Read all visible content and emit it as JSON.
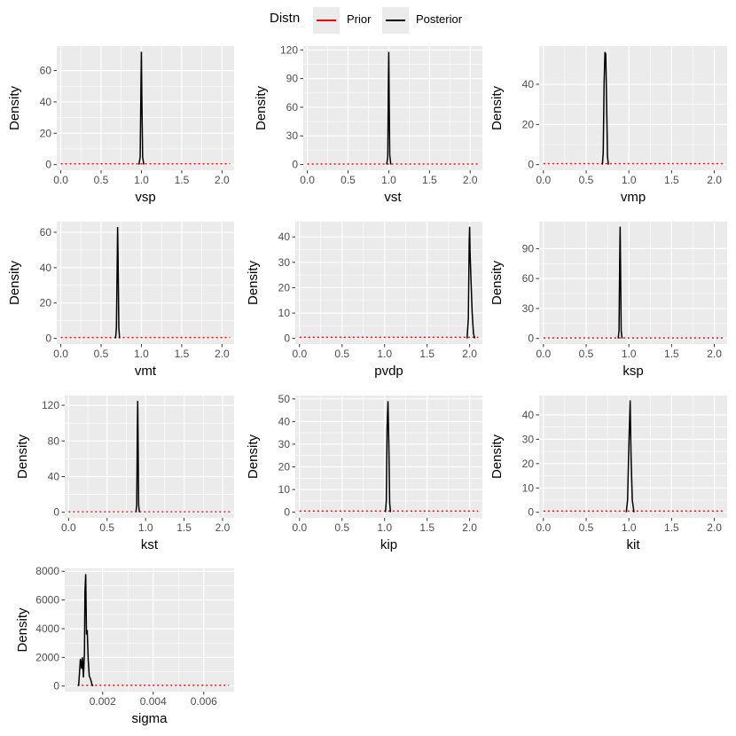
{
  "legend": {
    "title": "Distn",
    "items": [
      {
        "label": "Prior",
        "color": "#ff0000"
      },
      {
        "label": "Posterior",
        "color": "#000000"
      }
    ]
  },
  "colors": {
    "panel_bg": "#ebebeb",
    "grid": "#ffffff",
    "prior": "#ff0000",
    "posterior": "#000000"
  },
  "chart_data": [
    {
      "type": "line",
      "xlabel": "vsp",
      "ylabel": "Density",
      "xlim": [
        -0.05,
        2.15
      ],
      "ylim": [
        -3.6,
        75.6
      ],
      "xticks": [
        0.0,
        0.5,
        1.0,
        1.5,
        2.0
      ],
      "xtick_labels": [
        "0.0",
        "0.5",
        "1.0",
        "1.5",
        "2.0"
      ],
      "yticks": [
        0,
        20,
        40,
        60
      ],
      "ytick_labels": [
        "0",
        "20",
        "40",
        "60"
      ],
      "series": [
        {
          "name": "Prior",
          "x": [
            0.0,
            2.1
          ],
          "y": [
            0.5,
            0.5
          ]
        },
        {
          "name": "Posterior",
          "x": [
            0.97,
            0.985,
            0.995,
            1.0,
            1.005,
            1.015,
            1.03
          ],
          "y": [
            0,
            5,
            52,
            72,
            45,
            5,
            0
          ]
        }
      ]
    },
    {
      "type": "line",
      "xlabel": "vst",
      "ylabel": "Density",
      "xlim": [
        -0.05,
        2.15
      ],
      "ylim": [
        -6,
        124
      ],
      "xticks": [
        0.0,
        0.5,
        1.0,
        1.5,
        2.0
      ],
      "xtick_labels": [
        "0.0",
        "0.5",
        "1.0",
        "1.5",
        "2.0"
      ],
      "yticks": [
        0,
        30,
        60,
        90,
        120
      ],
      "ytick_labels": [
        "0",
        "30",
        "60",
        "90",
        "120"
      ],
      "series": [
        {
          "name": "Prior",
          "x": [
            0.0,
            2.1
          ],
          "y": [
            0.5,
            0.5
          ]
        },
        {
          "name": "Posterior",
          "x": [
            0.975,
            0.988,
            0.995,
            1.0,
            1.005,
            1.012,
            1.025
          ],
          "y": [
            0,
            8,
            80,
            118,
            70,
            10,
            0
          ]
        }
      ]
    },
    {
      "type": "line",
      "xlabel": "vmp",
      "ylabel": "Density",
      "xlim": [
        -0.05,
        2.15
      ],
      "ylim": [
        -2.8,
        59
      ],
      "xticks": [
        0.0,
        0.5,
        1.0,
        1.5,
        2.0
      ],
      "xtick_labels": [
        "0.0",
        "0.5",
        "1.0",
        "1.5",
        "2.0"
      ],
      "yticks": [
        0,
        20,
        40
      ],
      "ytick_labels": [
        "0",
        "20",
        "40"
      ],
      "series": [
        {
          "name": "Prior",
          "x": [
            0.0,
            2.1
          ],
          "y": [
            0.5,
            0.5
          ]
        },
        {
          "name": "Posterior",
          "x": [
            0.69,
            0.7,
            0.71,
            0.72,
            0.73,
            0.74,
            0.75,
            0.76
          ],
          "y": [
            0,
            6,
            40,
            56,
            55,
            30,
            4,
            0
          ]
        }
      ]
    },
    {
      "type": "line",
      "xlabel": "vmt",
      "ylabel": "Density",
      "xlim": [
        -0.05,
        2.15
      ],
      "ylim": [
        -3.2,
        66
      ],
      "xticks": [
        0.0,
        0.5,
        1.0,
        1.5,
        2.0
      ],
      "xtick_labels": [
        "0.0",
        "0.5",
        "1.0",
        "1.5",
        "2.0"
      ],
      "yticks": [
        0,
        20,
        40,
        60
      ],
      "ytick_labels": [
        "0",
        "20",
        "40",
        "60"
      ],
      "series": [
        {
          "name": "Prior",
          "x": [
            0.0,
            2.1
          ],
          "y": [
            0.5,
            0.5
          ]
        },
        {
          "name": "Posterior",
          "x": [
            0.68,
            0.69,
            0.7,
            0.705,
            0.71,
            0.72,
            0.73
          ],
          "y": [
            0,
            6,
            42,
            63,
            48,
            6,
            0
          ]
        }
      ]
    },
    {
      "type": "line",
      "xlabel": "pvdp",
      "ylabel": "Density",
      "xlim": [
        -0.05,
        2.15
      ],
      "ylim": [
        -2.2,
        46
      ],
      "xticks": [
        0.0,
        0.5,
        1.0,
        1.5,
        2.0
      ],
      "xtick_labels": [
        "0.0",
        "0.5",
        "1.0",
        "1.5",
        "2.0"
      ],
      "yticks": [
        0,
        10,
        20,
        30,
        40
      ],
      "ytick_labels": [
        "0",
        "10",
        "20",
        "30",
        "40"
      ],
      "series": [
        {
          "name": "Prior",
          "x": [
            0.0,
            2.1
          ],
          "y": [
            0.5,
            0.5
          ]
        },
        {
          "name": "Posterior",
          "x": [
            1.97,
            1.985,
            1.995,
            2.0,
            2.005,
            2.015,
            2.03,
            2.045,
            2.06
          ],
          "y": [
            0,
            8,
            38,
            44,
            34,
            24,
            10,
            2,
            0
          ]
        }
      ]
    },
    {
      "type": "line",
      "xlabel": "ksp",
      "ylabel": "Density",
      "xlim": [
        -0.05,
        2.15
      ],
      "ylim": [
        -5.6,
        117
      ],
      "xticks": [
        0.0,
        0.5,
        1.0,
        1.5,
        2.0
      ],
      "xtick_labels": [
        "0.0",
        "0.5",
        "1.0",
        "1.5",
        "2.0"
      ],
      "yticks": [
        0,
        30,
        60,
        90
      ],
      "ytick_labels": [
        "0",
        "30",
        "60",
        "90"
      ],
      "series": [
        {
          "name": "Prior",
          "x": [
            0.0,
            2.1
          ],
          "y": [
            0.5,
            0.5
          ]
        },
        {
          "name": "Posterior",
          "x": [
            0.875,
            0.885,
            0.893,
            0.898,
            0.903,
            0.91,
            0.92
          ],
          "y": [
            0,
            8,
            80,
            112,
            70,
            8,
            0
          ]
        }
      ]
    },
    {
      "type": "line",
      "xlabel": "kst",
      "ylabel": "Density",
      "xlim": [
        -0.05,
        2.15
      ],
      "ylim": [
        -6.3,
        131
      ],
      "xticks": [
        0.0,
        0.5,
        1.0,
        1.5,
        2.0
      ],
      "xtick_labels": [
        "0.0",
        "0.5",
        "1.0",
        "1.5",
        "2.0"
      ],
      "yticks": [
        0,
        40,
        80,
        120
      ],
      "ytick_labels": [
        "0",
        "40",
        "80",
        "120"
      ],
      "series": [
        {
          "name": "Prior",
          "x": [
            0.0,
            2.1
          ],
          "y": [
            0.5,
            0.5
          ]
        },
        {
          "name": "Posterior",
          "x": [
            0.875,
            0.885,
            0.893,
            0.898,
            0.903,
            0.91,
            0.92
          ],
          "y": [
            0,
            8,
            90,
            125,
            80,
            8,
            0
          ]
        }
      ]
    },
    {
      "type": "line",
      "xlabel": "kip",
      "ylabel": "Density",
      "xlim": [
        -0.05,
        2.15
      ],
      "ylim": [
        -2.5,
        51.5
      ],
      "xticks": [
        0.0,
        0.5,
        1.0,
        1.5,
        2.0
      ],
      "xtick_labels": [
        "0.0",
        "0.5",
        "1.0",
        "1.5",
        "2.0"
      ],
      "yticks": [
        0,
        10,
        20,
        30,
        40,
        50
      ],
      "ytick_labels": [
        "0",
        "10",
        "20",
        "30",
        "40",
        "50"
      ],
      "series": [
        {
          "name": "Prior",
          "x": [
            0.0,
            2.1
          ],
          "y": [
            0.5,
            0.5
          ]
        },
        {
          "name": "Posterior",
          "x": [
            1.01,
            1.02,
            1.03,
            1.04,
            1.05,
            1.06,
            1.07
          ],
          "y": [
            0,
            5,
            38,
            49,
            30,
            4,
            0
          ]
        }
      ]
    },
    {
      "type": "line",
      "xlabel": "kit",
      "ylabel": "Density",
      "xlim": [
        -0.05,
        2.15
      ],
      "ylim": [
        -2.3,
        48
      ],
      "xticks": [
        0.0,
        0.5,
        1.0,
        1.5,
        2.0
      ],
      "xtick_labels": [
        "0.0",
        "0.5",
        "1.0",
        "1.5",
        "2.0"
      ],
      "yticks": [
        0,
        10,
        20,
        30,
        40
      ],
      "ytick_labels": [
        "0",
        "10",
        "20",
        "30",
        "40"
      ],
      "series": [
        {
          "name": "Prior",
          "x": [
            0.0,
            2.1
          ],
          "y": [
            0.5,
            0.5
          ]
        },
        {
          "name": "Posterior",
          "x": [
            0.97,
            0.985,
            0.995,
            1.005,
            1.015,
            1.025,
            1.04,
            1.06
          ],
          "y": [
            0,
            5,
            20,
            34,
            46,
            24,
            5,
            0
          ]
        }
      ]
    },
    {
      "type": "line",
      "xlabel": "sigma",
      "ylabel": "Density",
      "xlim": [
        0.0005,
        0.0072
      ],
      "ylim": [
        -390,
        8200
      ],
      "xticks": [
        0.002,
        0.004,
        0.006
      ],
      "xtick_labels": [
        "0.002",
        "0.004",
        "0.006"
      ],
      "yticks": [
        0,
        2000,
        4000,
        6000,
        8000
      ],
      "ytick_labels": [
        "0",
        "2000",
        "4000",
        "6000",
        "8000"
      ],
      "series": [
        {
          "name": "Prior",
          "x": [
            0.001,
            0.007
          ],
          "y": [
            50,
            50
          ]
        },
        {
          "name": "Posterior",
          "x": [
            0.00105,
            0.00112,
            0.00117,
            0.0012,
            0.00124,
            0.00128,
            0.0013,
            0.00133,
            0.00136,
            0.00139,
            0.00143,
            0.00147,
            0.00152,
            0.00158,
            0.00162
          ],
          "y": [
            0,
            1900,
            1200,
            2000,
            600,
            2300,
            6600,
            7800,
            3600,
            3900,
            1800,
            700,
            500,
            100,
            0
          ]
        }
      ]
    }
  ]
}
